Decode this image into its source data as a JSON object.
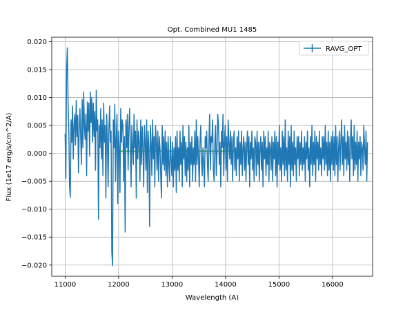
{
  "chart_data": {
    "type": "line",
    "title": "Opt. Combined MU1 1485",
    "xlabel": "Wavelength (A)",
    "ylabel": "Flux (1e17 erg/s/cm^2/A)",
    "xlim": [
      10750,
      16750
    ],
    "ylim": [
      -0.022,
      0.0208
    ],
    "xticks": [
      11000,
      12000,
      13000,
      14000,
      15000,
      16000
    ],
    "yticks": [
      -0.02,
      -0.015,
      -0.01,
      -0.005,
      0.0,
      0.005,
      0.01,
      0.015,
      0.02
    ],
    "ytick_labels": [
      "−0.020",
      "−0.015",
      "−0.010",
      "−0.005",
      "0.000",
      "0.005",
      "0.010",
      "0.015",
      "0.020"
    ],
    "grid": true,
    "legend": {
      "entries": [
        "RAVG_OPT"
      ],
      "position": "top-right"
    },
    "series": [
      {
        "name": "RAVG_OPT",
        "color": "#1f77b4",
        "x_start": 11000,
        "x_step": 13.86,
        "y": [
          0.0035,
          -0.0045,
          0.0152,
          0.0189,
          0.009,
          0.004,
          -0.006,
          -0.0079,
          0.006,
          0.002,
          0.0085,
          -0.001,
          0.005,
          0.007,
          0.0015,
          0.0095,
          0.003,
          0.0068,
          -0.0035,
          0.004,
          0.008,
          0.003,
          -0.002,
          0.0096,
          0.001,
          0.011,
          0.005,
          0.0025,
          0.007,
          -0.004,
          0.0092,
          0.004,
          0.009,
          -0.0005,
          0.011,
          0.0055,
          0.01,
          0.002,
          0.009,
          0.003,
          0.0075,
          -0.003,
          0.0113,
          0.004,
          0.006,
          -0.0118,
          0.005,
          0.001,
          0.008,
          -0.001,
          0.006,
          -0.004,
          0.009,
          0.002,
          0.005,
          -0.008,
          0.007,
          0.003,
          -0.006,
          0.004,
          0.0085,
          0.002,
          0.004,
          -0.0176,
          -0.0201,
          0.006,
          0.001,
          0.0088,
          -0.005,
          0.003,
          0.007,
          -0.009,
          0.004,
          0.001,
          -0.007,
          0.008,
          0.002,
          0.006,
          0.005,
          -0.005,
          0.003,
          -0.0141,
          0.006,
          0.001,
          0.007,
          -0.003,
          0.004,
          0.008,
          0.002,
          -0.006,
          0.005,
          0.001,
          -0.002,
          0.007,
          0.001,
          0.004,
          -0.008,
          0.006,
          -0.001,
          0.004,
          0.002,
          -0.005,
          0.006,
          -0.002,
          0.0048,
          0.001,
          -0.006,
          0.005,
          0.002,
          -0.003,
          0.006,
          -0.007,
          0.004,
          0.001,
          -0.0131,
          0.005,
          0.002,
          -0.004,
          0.006,
          -0.001,
          0.003,
          -0.006,
          0.005,
          0.002,
          -0.003,
          0.004,
          -0.005,
          0.003,
          0.001,
          -0.004,
          -0.008,
          0.005,
          -0.002,
          0.003,
          -0.003,
          0.004,
          -0.004,
          0.002,
          -0.006,
          0.003,
          -0.002,
          -0.005,
          0.003,
          -0.001,
          -0.004,
          0.002,
          -0.006,
          0.001,
          -0.003,
          0.003,
          -0.007,
          0.004,
          -0.003,
          0.001,
          -0.005,
          0.004,
          -0.002,
          0.002,
          -0.006,
          0.005,
          -0.001,
          0.003,
          -0.004,
          0.002,
          -0.005,
          0.001,
          -0.003,
          0.005,
          -0.006,
          0.002,
          -0.002,
          0.003,
          -0.005,
          0.001,
          -0.002,
          0.004,
          -0.005,
          0.006,
          -0.002,
          0.003,
          -0.001,
          -0.006,
          0.002,
          0.005,
          -0.001,
          -0.004,
          0.001,
          -0.002,
          -0.006,
          0.003,
          0.001,
          0.004,
          -0.002,
          -0.005,
          0.002,
          0.007,
          -0.003,
          0.003,
          0.002,
          0.006,
          -0.003,
          -0.005,
          0.002,
          0.005,
          -0.004,
          0.001,
          0.007,
          0.005,
          -0.002,
          0.002,
          -0.006,
          0.004,
          0.001,
          0.007,
          -0.004,
          0.002,
          0.005,
          -0.003,
          0.003,
          -0.005,
          0.006,
          0.002,
          -0.001,
          0.004,
          -0.002,
          0.003,
          -0.005,
          0.002,
          0.004,
          -0.003,
          0.001,
          -0.004,
          0.003,
          -0.001,
          0.004,
          -0.005,
          0.002,
          -0.002,
          0.004,
          -0.004,
          0.001,
          0.003,
          -0.003,
          0.002,
          -0.005,
          0.001,
          0.004,
          -0.002,
          0.003,
          -0.006,
          0.002,
          -0.001,
          0.004,
          -0.003,
          0.001,
          -0.005,
          0.003,
          0.002,
          -0.004,
          0.004,
          -0.002,
          0.002,
          -0.005,
          0.001,
          0.003,
          -0.003,
          0.002,
          -0.006,
          0.004,
          -0.001,
          0.003,
          -0.004,
          0.001,
          -0.002,
          0.004,
          -0.005,
          0.002,
          0.001,
          -0.003,
          0.003,
          -0.005,
          0.002,
          -0.001,
          0.004,
          -0.004,
          0.003,
          -0.006,
          0.002,
          -0.002,
          0.005,
          -0.003,
          0.001,
          -0.005,
          0.004,
          -0.002,
          0.003,
          -0.004,
          0.006,
          -0.003,
          0.001,
          -0.005,
          0.004,
          -0.002,
          0.003,
          -0.006,
          0.005,
          -0.003,
          0.002,
          -0.004,
          0.004,
          -0.002,
          0.001,
          -0.005,
          0.003,
          -0.001,
          0.003,
          -0.004,
          0.002,
          -0.002,
          0.004,
          -0.003,
          0.001,
          -0.002,
          0.003,
          -0.005,
          0.002,
          -0.001,
          0.004,
          -0.003,
          0.001,
          -0.006,
          0.003,
          -0.002,
          0.005,
          -0.004,
          0.002,
          -0.002,
          0.004,
          -0.005,
          0.003,
          -0.001,
          0.002,
          -0.003,
          0.004,
          -0.002,
          0.001,
          -0.004,
          0.003,
          -0.001,
          0.003,
          -0.003,
          0.005,
          -0.002,
          0.002,
          -0.004,
          0.004,
          -0.003,
          0.002,
          -0.005,
          0.003,
          -0.002,
          0.004,
          -0.003,
          0.003,
          -0.004,
          0.005,
          -0.002,
          0.003,
          -0.005,
          0.001,
          0.004,
          -0.003,
          0.002,
          0.006,
          -0.002,
          0.003,
          -0.004,
          0.005,
          -0.001,
          0.002,
          -0.003,
          0.004,
          -0.002,
          0.003,
          -0.005,
          0.002,
          0.006,
          -0.001,
          0.003,
          -0.004,
          0.005,
          -0.003,
          0.002,
          -0.002,
          0.004,
          -0.005,
          0.002,
          -0.001,
          0.003,
          -0.004,
          0.002,
          0.001,
          -0.003,
          0.005,
          0.001,
          -0.002,
          0.004,
          -0.005,
          0.002
        ]
      }
    ],
    "continuum": {
      "color": "#2ca02c",
      "x": [
        12000,
        15000
      ],
      "y": [
        0.0004,
        0.0004
      ]
    }
  }
}
